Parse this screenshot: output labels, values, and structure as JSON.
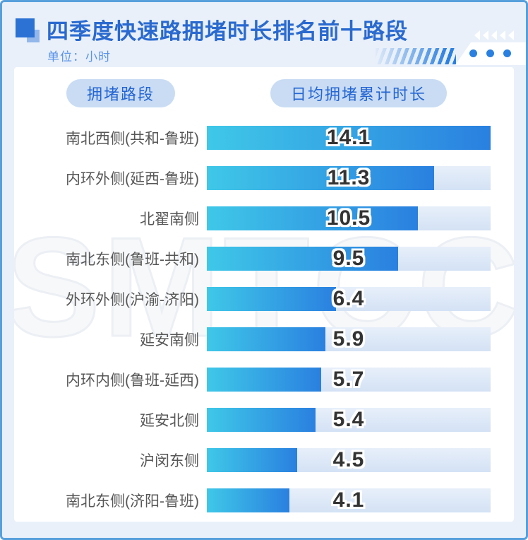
{
  "header": {
    "title": "四季度快速路拥堵时长排名前十路段",
    "unit_label": "单位：小时"
  },
  "column_headers": {
    "road": "拥堵路段",
    "duration": "日均拥堵累计时长"
  },
  "watermark": "SMTCC",
  "colors": {
    "accent_blue": "#2A6ACF",
    "frame_border": "#58A0DC",
    "page_bg": "#E9F0FA",
    "pill_bg": "#C9DCF4",
    "pill_text": "#2365D2",
    "bar_gradient_start": "#3FC8E8",
    "bar_gradient_end": "#2A80E0",
    "track_light": "#E7EFFA",
    "track_dark": "#D4E2F5",
    "label_text": "#575757",
    "value_text": "#333333"
  },
  "chart_data": {
    "type": "bar",
    "orientation": "horizontal",
    "title": "四季度快速路拥堵时长排名前十路段",
    "unit": "小时",
    "xlabel": "日均拥堵累计时长",
    "ylabel": "拥堵路段",
    "categories": [
      "南北西侧(共和-鲁班)",
      "内环外侧(延西-鲁班)",
      "北翟南侧",
      "南北东侧(鲁班-共和)",
      "外环外侧(沪渝-济阳)",
      "延安南侧",
      "内环内侧(鲁班-延西)",
      "延安北侧",
      "沪闵东侧",
      "南北东侧(济阳-鲁班)"
    ],
    "values": [
      14.1,
      11.3,
      10.5,
      9.5,
      6.4,
      5.9,
      5.7,
      5.4,
      4.5,
      4.1
    ],
    "xlim": [
      0,
      14.1
    ],
    "grid": false,
    "legend": false,
    "value_labels": "centered-on-track"
  }
}
